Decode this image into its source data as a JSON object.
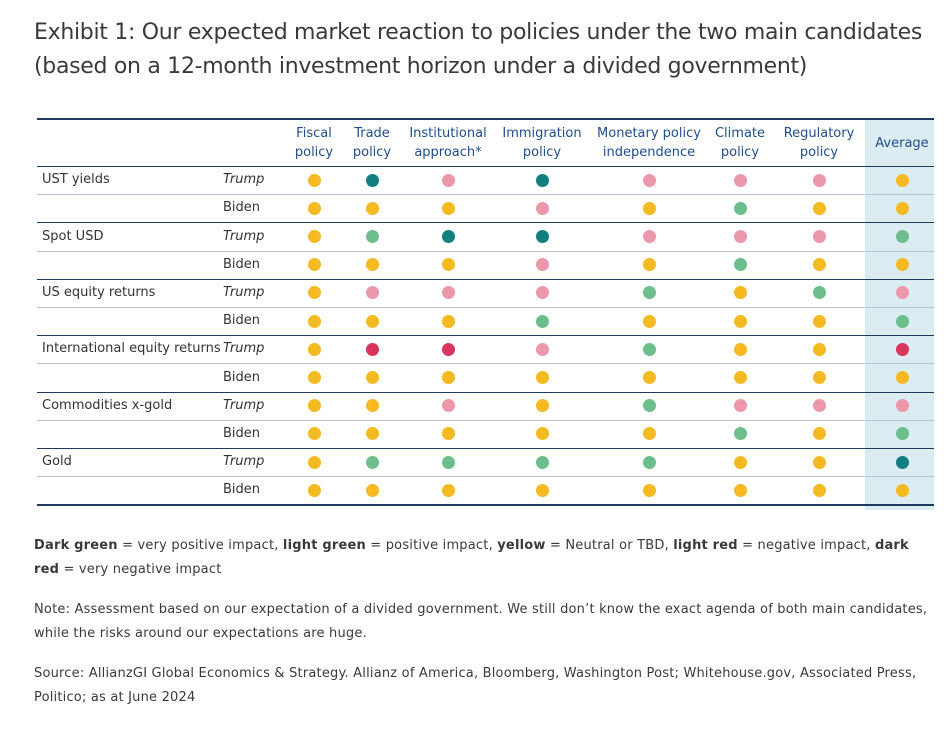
{
  "title_line1": "Exhibit 1: Our expected market reaction to policies under the two main candidates",
  "title_line2": "(based on a 12-month investment horizon under a divided government)",
  "chart_data": {
    "type": "table",
    "columns": [
      "Fiscal\npolicy",
      "Trade\npolicy",
      "Institutional\napproach*",
      "Immigration\npolicy",
      "Monetary policy\nindependence",
      "Climate\npolicy",
      "Regulatory\npolicy",
      "Average"
    ],
    "rows": [
      {
        "asset": "UST yields",
        "candidate": "Trump",
        "values": [
          "yellow",
          "dark green",
          "light red",
          "dark green",
          "light red",
          "light red",
          "light red",
          "yellow"
        ]
      },
      {
        "asset": "",
        "candidate": "Biden",
        "values": [
          "yellow",
          "yellow",
          "yellow",
          "light red",
          "yellow",
          "light green",
          "yellow",
          "yellow"
        ]
      },
      {
        "asset": "Spot USD",
        "candidate": "Trump",
        "values": [
          "yellow",
          "light green",
          "dark green",
          "dark green",
          "light red",
          "light red",
          "light red",
          "light green"
        ]
      },
      {
        "asset": "",
        "candidate": "Biden",
        "values": [
          "yellow",
          "yellow",
          "yellow",
          "light red",
          "yellow",
          "light green",
          "yellow",
          "yellow"
        ]
      },
      {
        "asset": "US equity returns",
        "candidate": "Trump",
        "values": [
          "yellow",
          "light red",
          "light red",
          "light red",
          "light green",
          "yellow",
          "light green",
          "light red"
        ]
      },
      {
        "asset": "",
        "candidate": "Biden",
        "values": [
          "yellow",
          "yellow",
          "yellow",
          "light green",
          "yellow",
          "yellow",
          "yellow",
          "light green"
        ]
      },
      {
        "asset": "International equity returns",
        "candidate": "Trump",
        "values": [
          "yellow",
          "dark red",
          "dark red",
          "light red",
          "light green",
          "yellow",
          "yellow",
          "dark red"
        ]
      },
      {
        "asset": "",
        "candidate": "Biden",
        "values": [
          "yellow",
          "yellow",
          "yellow",
          "yellow",
          "yellow",
          "yellow",
          "yellow",
          "yellow"
        ]
      },
      {
        "asset": "Commodities x-gold",
        "candidate": "Trump",
        "values": [
          "yellow",
          "yellow",
          "light red",
          "yellow",
          "light green",
          "light red",
          "light red",
          "light red"
        ]
      },
      {
        "asset": "",
        "candidate": "Biden",
        "values": [
          "yellow",
          "yellow",
          "yellow",
          "yellow",
          "yellow",
          "light green",
          "yellow",
          "light green"
        ]
      },
      {
        "asset": "Gold",
        "candidate": "Trump",
        "values": [
          "yellow",
          "light green",
          "light green",
          "light green",
          "light green",
          "yellow",
          "yellow",
          "dark green"
        ]
      },
      {
        "asset": "",
        "candidate": "Biden",
        "values": [
          "yellow",
          "yellow",
          "yellow",
          "yellow",
          "yellow",
          "yellow",
          "yellow",
          "yellow"
        ]
      }
    ],
    "colors": {
      "dark green": "#127f7f",
      "light green": "#6cbf8c",
      "yellow": "#f5b922",
      "light red": "#ec98aa",
      "dark red": "#d9345c"
    }
  },
  "legend": {
    "dark_green": "Dark green",
    "dark_green_text": " = very positive impact, ",
    "light_green": "light green",
    "light_green_text": " = positive impact, ",
    "yellow": "yellow",
    "yellow_text": " = Neutral or TBD, ",
    "light_red": "light red",
    "light_red_text": " = negative impact, ",
    "dark_red": "dark red",
    "dark_red_text": " = very negative impact"
  },
  "note": "Note: Assessment based on our expectation of a divided government. We still don’t know the exact agenda of both main candidates, while the risks around our expectations are huge.",
  "source": "Source: AllianzGI Global Economics & Strategy. Allianz of America, Bloomberg, Washington Post; Whitehouse.gov, Associated Press, Politico; as at June 2024"
}
